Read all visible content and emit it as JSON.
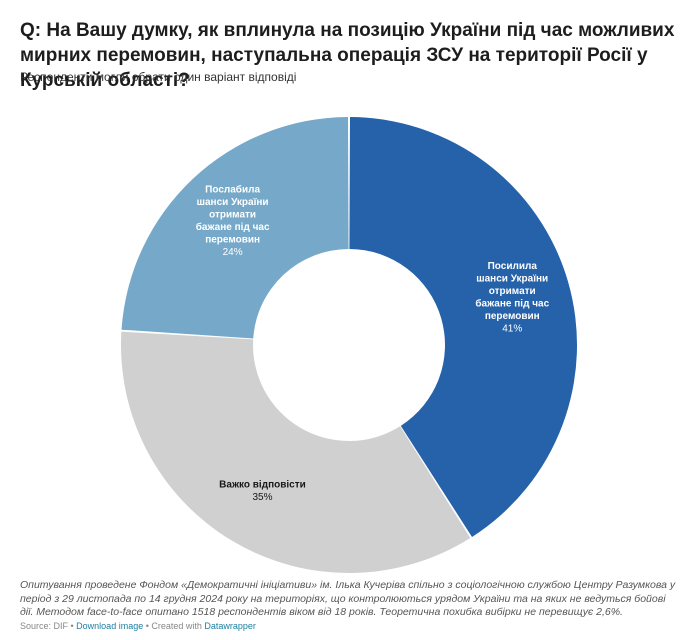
{
  "header": {
    "title": "Q: На Вашу думку, як вплинула на позицію України під час можливих мирних перемовин, наступальна операція ЗСУ на території Росії у Курській області?",
    "subtitle": "Респонденти могли обрати один варіант відповіді"
  },
  "chart_data": {
    "type": "pie",
    "donut": true,
    "start_angle_deg": 0,
    "direction": "clockwise",
    "slices": [
      {
        "label_lines": [
          "Посилила",
          "шанси України",
          "отримати",
          "бажане під час",
          "перемовин"
        ],
        "value": 41,
        "value_label": "41%",
        "color": "#2562aa",
        "text_color": "#ffffff"
      },
      {
        "label_lines": [
          "Важко відповісти"
        ],
        "value": 35,
        "value_label": "35%",
        "color": "#d0d0d0",
        "text_color": "#181818"
      },
      {
        "label_lines": [
          "Послабила",
          "шанси України",
          "отримати",
          "бажане під час",
          "перемовин"
        ],
        "value": 24,
        "value_label": "24%",
        "color": "#76a9c9",
        "text_color": "#ffffff"
      }
    ]
  },
  "notes": "Опитування проведене Фондом «Демократичні ініціативи» ім. Ілька Кучеріва спільно з соціологічною службою Центру Разумкова у період з 29 листопада по 14 грудня 2024 року на територіях, що контролюються урядом України та на яких не ведуться бойові дії. Методом face-to-face опитано 1518 респондентів віком від 18 років. Теоретична похибка вибірки не перевищує 2,6%.",
  "footer": {
    "source": "Source: DIF",
    "separator1": " • ",
    "download_label": "Download image",
    "separator2": " • Created with ",
    "datawrapper_label": "Datawrapper"
  }
}
